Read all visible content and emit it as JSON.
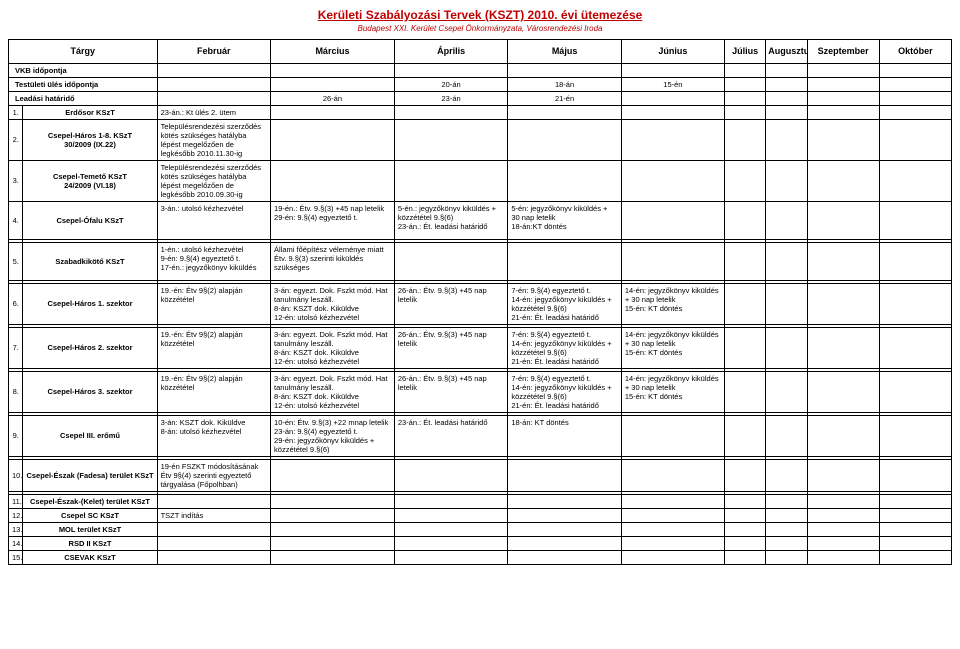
{
  "title": "Kerületi Szabályozási Tervek (KSZT) 2010. évi ütemezése",
  "subtitle": "Budapest XXI. Kerület Csepel Önkormányzata, Városrendezési Iroda",
  "headers": {
    "targy": "Tárgy",
    "feb": "Február",
    "mar": "Március",
    "apr": "Április",
    "may": "Május",
    "jun": "Június",
    "jul": "Július",
    "aug": "Augusztus",
    "sep": "Szeptember",
    "oct": "Október"
  },
  "row_vkb": {
    "label": "VKB időpontja"
  },
  "row_test": {
    "label": "Testületi ülés időpontja",
    "apr": "20-án",
    "may": "18-án",
    "jun": "15-én"
  },
  "row_lead": {
    "label": "Leadási határidő",
    "mar": "26-án",
    "apr": "23-án",
    "may": "21-én"
  },
  "rows": [
    {
      "n": "1.",
      "name": "Erdősor KSzT",
      "feb": "23-án.: Kt ülés 2. ütem"
    },
    {
      "n": "2.",
      "name": "Csepel-Háros 1-8. KSzT\n30/2009 (IX.22)",
      "feb": "Településrendezési szerződés kötés szükséges hatályba lépést megelőzően de legkésőbb 2010.11.30-ig"
    },
    {
      "n": "3.",
      "name": "Csepel-Temető KSzT\n24/2009 (VI.18)",
      "feb": "Településrendezési szerződés kötés szükséges hatályba lépést megelőzően de legkésőbb 2010.09.30-ig"
    },
    {
      "n": "4.",
      "name": "Csepel-Ófalu KSzT",
      "feb": "3-án.: utolsó kézhezvétel",
      "mar": "19-én.: Étv. 9.§(3) +45 nap letelik\n29-én: 9.§(4) egyeztető t.",
      "apr": "5-én.: jegyzőkönyv kiküldés + közzététel 9.§(6)\n23-án.: Ét. leadási határidő",
      "may": "5-én: jegyzőkönyv kiküldés + 30 nap letelik\n18-án:KT döntés"
    },
    {
      "n": "5.",
      "name": "Szabadkikötő KSzT",
      "feb": "1-én.: utolsó kézhezvétel\n9-én: 9.§(4) egyeztető t.\n17-én.: jegyzőkönyv kiküldés",
      "mar": "Állami főépítész véleménye miatt Étv. 9.§(3) szerinti kiküldés szükséges"
    },
    {
      "n": "6.",
      "name": "Csepel-Háros 1. szektor",
      "feb": "19.-én: Étv 9§(2) alapján közzététel",
      "mar": "3-án: egyezt. Dok. Fszkt mód. Hat tanulmány leszáll.\n8-án: KSZT dok. Kiküldve\n12-én: utolsó kézhezvétel",
      "apr": "26-án.: Étv. 9.§(3) +45 nap letelik",
      "may": "7-én: 9.§(4) egyeztető t.\n14-én: jegyzőkönyv kiküldés + közzététel 9.§(6)\n21-én: Ét. leadási határidő",
      "jun": "14-én: jegyzőkönyv kiküldés + 30 nap letelik\n15-én: KT döntés"
    },
    {
      "n": "7.",
      "name": "Csepel-Háros 2. szektor",
      "feb": "19.-én: Étv 9§(2) alapján közzététel",
      "mar": "3-án: egyezt. Dok. Fszkt mód. Hat tanulmány leszáll.\n8-án: KSZT dok. Kiküldve\n12-én: utolsó kézhezvétel",
      "apr": "26-án.: Étv. 9.§(3) +45 nap letelik",
      "may": "7-én: 9.§(4) egyeztető t.\n14-én: jegyzőkönyv kiküldés + közzététel 9.§(6)\n21-én: Ét. leadási határidő",
      "jun": "14-én: jegyzőkönyv kiküldés + 30 nap letelik\n15-én: KT döntés"
    },
    {
      "n": "8.",
      "name": "Csepel-Háros 3. szektor",
      "feb": "19.-én: Étv 9§(2) alapján közzététel",
      "mar": "3-án: egyezt. Dok. Fszkt mód. Hat tanulmány leszáll.\n8-án: KSZT dok. Kiküldve\n12-én: utolsó kézhezvétel",
      "apr": "26-án.: Étv. 9.§(3) +45 nap letelik",
      "may": "7-én: 9.§(4) egyeztető t.\n14-én: jegyzőkönyv kiküldés + közzététel 9.§(6)\n21-én: Ét. leadási határidő",
      "jun": "14-én: jegyzőkönyv kiküldés + 30 nap letelik\n15-én: KT döntés"
    },
    {
      "n": "9.",
      "name": "Csepel III. erőmű",
      "feb": "3-án: KSZT dok. Kiküldve\n8-án: utolsó kézhezvétel",
      "mar": "10-én: Étv. 9.§(3) +22 mnap letelik\n23-án: 9.§(4) egyeztető t.\n29-én: jegyzőkönyv kiküldés + közzététel 9.§(6)",
      "apr": "23-án.: Ét. leadási határidő",
      "may": "18-án: KT döntés"
    },
    {
      "n": "10.",
      "name": "Csepel-Észak (Fadesa) terület KSzT",
      "feb": "19-én FSZKT módosításának Étv 9§(4) szerinti egyeztető tárgyalása (Főpolhban)"
    },
    {
      "n": "11.",
      "name": "Csepel-Észak-(Kelet) terület KSzT"
    },
    {
      "n": "12.",
      "name": "Csepel SC KSzT",
      "feb": "TSZT indítás"
    },
    {
      "n": "13.",
      "name": "MOL terület KSzT"
    },
    {
      "n": "14.",
      "name": "RSD II KSzT"
    },
    {
      "n": "15.",
      "name": "CSEVAK KSzT"
    }
  ]
}
